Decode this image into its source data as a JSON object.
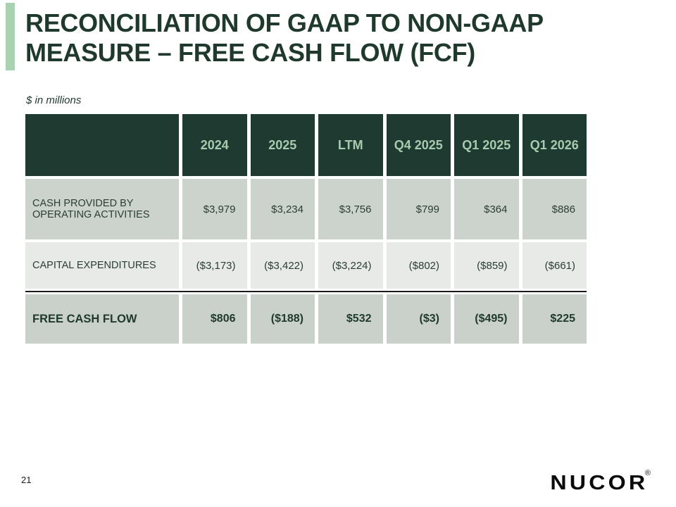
{
  "slide": {
    "title": "RECONCILIATION OF GAAP TO NON-GAAP MEASURE – FREE CASH FLOW (FCF)",
    "units_note": "$ in millions",
    "page_number": "21",
    "logo": {
      "text": "NUCOR",
      "registered_mark": "®"
    }
  },
  "table": {
    "columns": [
      "",
      "2024",
      "2025",
      "LTM",
      "Q4 2025",
      "Q1 2025",
      "Q1 2026"
    ],
    "rows": [
      {
        "label": "CASH PROVIDED BY OPERATING ACTIVITIES",
        "values": [
          "$3,979",
          "$3,234",
          "$3,756",
          "$799",
          "$364",
          "$886"
        ]
      },
      {
        "label": "CAPITAL EXPENDITURES",
        "values": [
          "($3,173)",
          "($3,422)",
          "($3,224)",
          "($802)",
          "($859)",
          "($661)"
        ]
      },
      {
        "label": "FREE CASH FLOW",
        "values": [
          "$806",
          "($188)",
          "$532",
          "($3)",
          "($495)",
          "$225"
        ]
      }
    ]
  },
  "colors": {
    "header_bg": "#1F3A30",
    "header_text": "#A7CBAF",
    "row_bg": "#CCD3CC",
    "row_alt_bg": "#E8EAE7",
    "total_row_bg": "#C9D1CA",
    "title_text": "#1F3A2D",
    "body_text": "#2B3E36",
    "accent_bar": "#A9D2B3",
    "separator": "#1A1A1A",
    "logo_text": "#0A0A0A"
  }
}
